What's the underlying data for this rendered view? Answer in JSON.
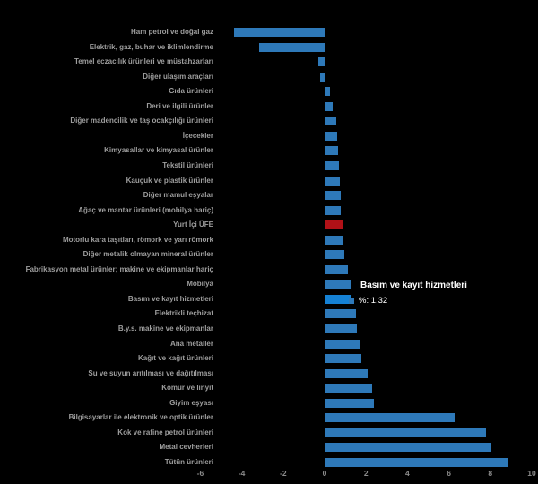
{
  "chart_data": {
    "type": "bar",
    "orientation": "horizontal",
    "title": "",
    "xlabel": "",
    "ylabel": "",
    "xlim": [
      -6,
      10
    ],
    "x_ticks": [
      -6,
      -4,
      -2,
      0,
      2,
      4,
      6,
      8,
      10
    ],
    "grid": false,
    "legend": "none",
    "value_unit": "%",
    "categories": [
      "Ham petrol ve doğal gaz",
      "Elektrik, gaz, buhar ve iklimlendirme",
      "Temel eczacılık ürünleri ve müstahzarları",
      "Diğer ulaşım araçları",
      "Gıda ürünleri",
      "Deri ve ilgili ürünler",
      "Diğer madencilik ve taş ocakçılığı ürünleri",
      "İçecekler",
      "Kimyasallar ve kimyasal ürünler",
      "Tekstil ürünleri",
      "Kauçuk ve plastik ürünler",
      "Diğer mamul eşyalar",
      "Ağaç ve mantar ürünleri (mobilya hariç)",
      "Yurt İçi ÜFE",
      "Motorlu kara taşıtları, römork ve yarı römork",
      "Diğer metalik olmayan mineral ürünler",
      "Fabrikasyon metal ürünler; makine ve ekipmanlar hariç",
      "Mobilya",
      "Basım ve kayıt hizmetleri",
      "Elektrikli teçhizat",
      "B.y.s. makine ve ekipmanlar",
      "Ana metaller",
      "Kağıt ve kağıt ürünleri",
      "Su ve suyun arıtılması ve dağıtılması",
      "Kömür ve linyit",
      "Giyim eşyası",
      "Bilgisayarlar ile elektronik ve optik ürünler",
      "Kok ve rafine petrol ürünleri",
      "Metal cevherleri",
      "Tütün ürünleri"
    ],
    "values": [
      -4.37,
      -3.16,
      -0.3,
      -0.22,
      0.25,
      0.39,
      0.58,
      0.61,
      0.66,
      0.68,
      0.74,
      0.78,
      0.8,
      0.87,
      0.91,
      0.94,
      1.11,
      1.28,
      1.32,
      1.5,
      1.56,
      1.69,
      1.76,
      2.09,
      2.29,
      2.38,
      6.28,
      7.79,
      8.05,
      8.88
    ],
    "special_bars": {
      "red_category": "Yurt İçi ÜFE",
      "hovered_category": "Basım ve kayıt hizmetleri"
    }
  },
  "tooltip": {
    "title": "Basım ve kayıt hizmetleri",
    "value_label": "%: 1.32"
  },
  "colors": {
    "background": "#000000",
    "bar_blue": "#2e79b9",
    "bar_hover_blue": "#1581d4",
    "bar_red": "#b11117",
    "category_text": "#9e9e9e",
    "axis_text": "#8c8c8c",
    "tooltip_text": "#ffffff",
    "zero_line": "#666666"
  }
}
